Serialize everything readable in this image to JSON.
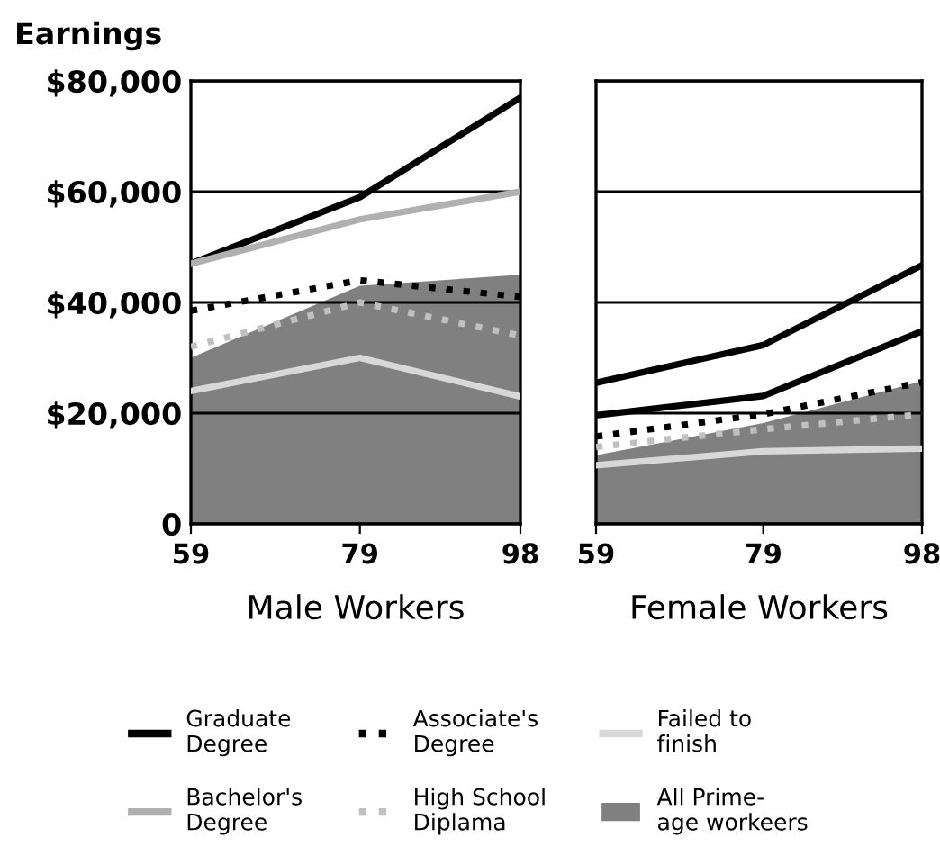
{
  "chart_data": [
    {
      "type": "line",
      "ylabel": "Earnings",
      "xlabel": "Male Workers",
      "x": [
        59,
        79,
        98
      ],
      "xlim": [
        59,
        98
      ],
      "xticks": [
        59,
        79,
        98
      ],
      "ylim": [
        0,
        80000
      ],
      "yticks": [
        {
          "value": 0,
          "label": "0"
        },
        {
          "value": 20000,
          "label": "$20,000"
        },
        {
          "value": 40000,
          "label": "$40,000"
        },
        {
          "value": 60000,
          "label": "$60,000"
        },
        {
          "value": 80000,
          "label": "$80,000"
        }
      ],
      "grid": "y",
      "legend": "bottom",
      "series": [
        {
          "name": "All Prime-\nage workeers",
          "type": "area",
          "color": "#808080",
          "values": [
            30000,
            43000,
            45000
          ]
        },
        {
          "name": "Graduate\nDegree",
          "color": "#000000",
          "values": [
            47000,
            59000,
            77000
          ]
        },
        {
          "name": "Bachelor's\nDegree",
          "color": "#b0b0b0",
          "values": [
            47000,
            55000,
            60000
          ]
        },
        {
          "name": "Associate's\nDegree",
          "color": "#000000",
          "line_style": "dotted",
          "values": [
            38500,
            44000,
            41000
          ]
        },
        {
          "name": "High School\nDiplama",
          "color": "#c0c0c0",
          "line_style": "dotted",
          "values": [
            32000,
            40000,
            34000
          ]
        },
        {
          "name": "Failed to\nfinish",
          "color": "#d8d8d8",
          "values": [
            24000,
            30000,
            23000
          ]
        }
      ]
    },
    {
      "type": "line",
      "xlabel": "Female Workers",
      "x": [
        59,
        79,
        98
      ],
      "xlim": [
        59,
        98
      ],
      "xticks": [
        59,
        79,
        98
      ],
      "ylim": [
        0,
        80000
      ],
      "yticks": [
        0,
        20000,
        40000,
        60000,
        80000
      ],
      "grid": "y",
      "tick_labels": "x",
      "series": [
        {
          "type": "area",
          "color": "#808080",
          "values": [
            12400,
            18200,
            25800
          ]
        },
        {
          "color": "#000000",
          "values": [
            25500,
            32300,
            46700
          ]
        },
        {
          "color": "#000000",
          "values": [
            19600,
            23100,
            34800
          ]
        },
        {
          "color": "#000000",
          "line_style": "dotted",
          "values": [
            15800,
            19800,
            25600
          ]
        },
        {
          "color": "#c0c0c0",
          "line_style": "dotted",
          "values": [
            13900,
            17100,
            19800
          ]
        },
        {
          "color": "#d8d8d8",
          "values": [
            10600,
            13100,
            13600
          ]
        }
      ]
    }
  ]
}
